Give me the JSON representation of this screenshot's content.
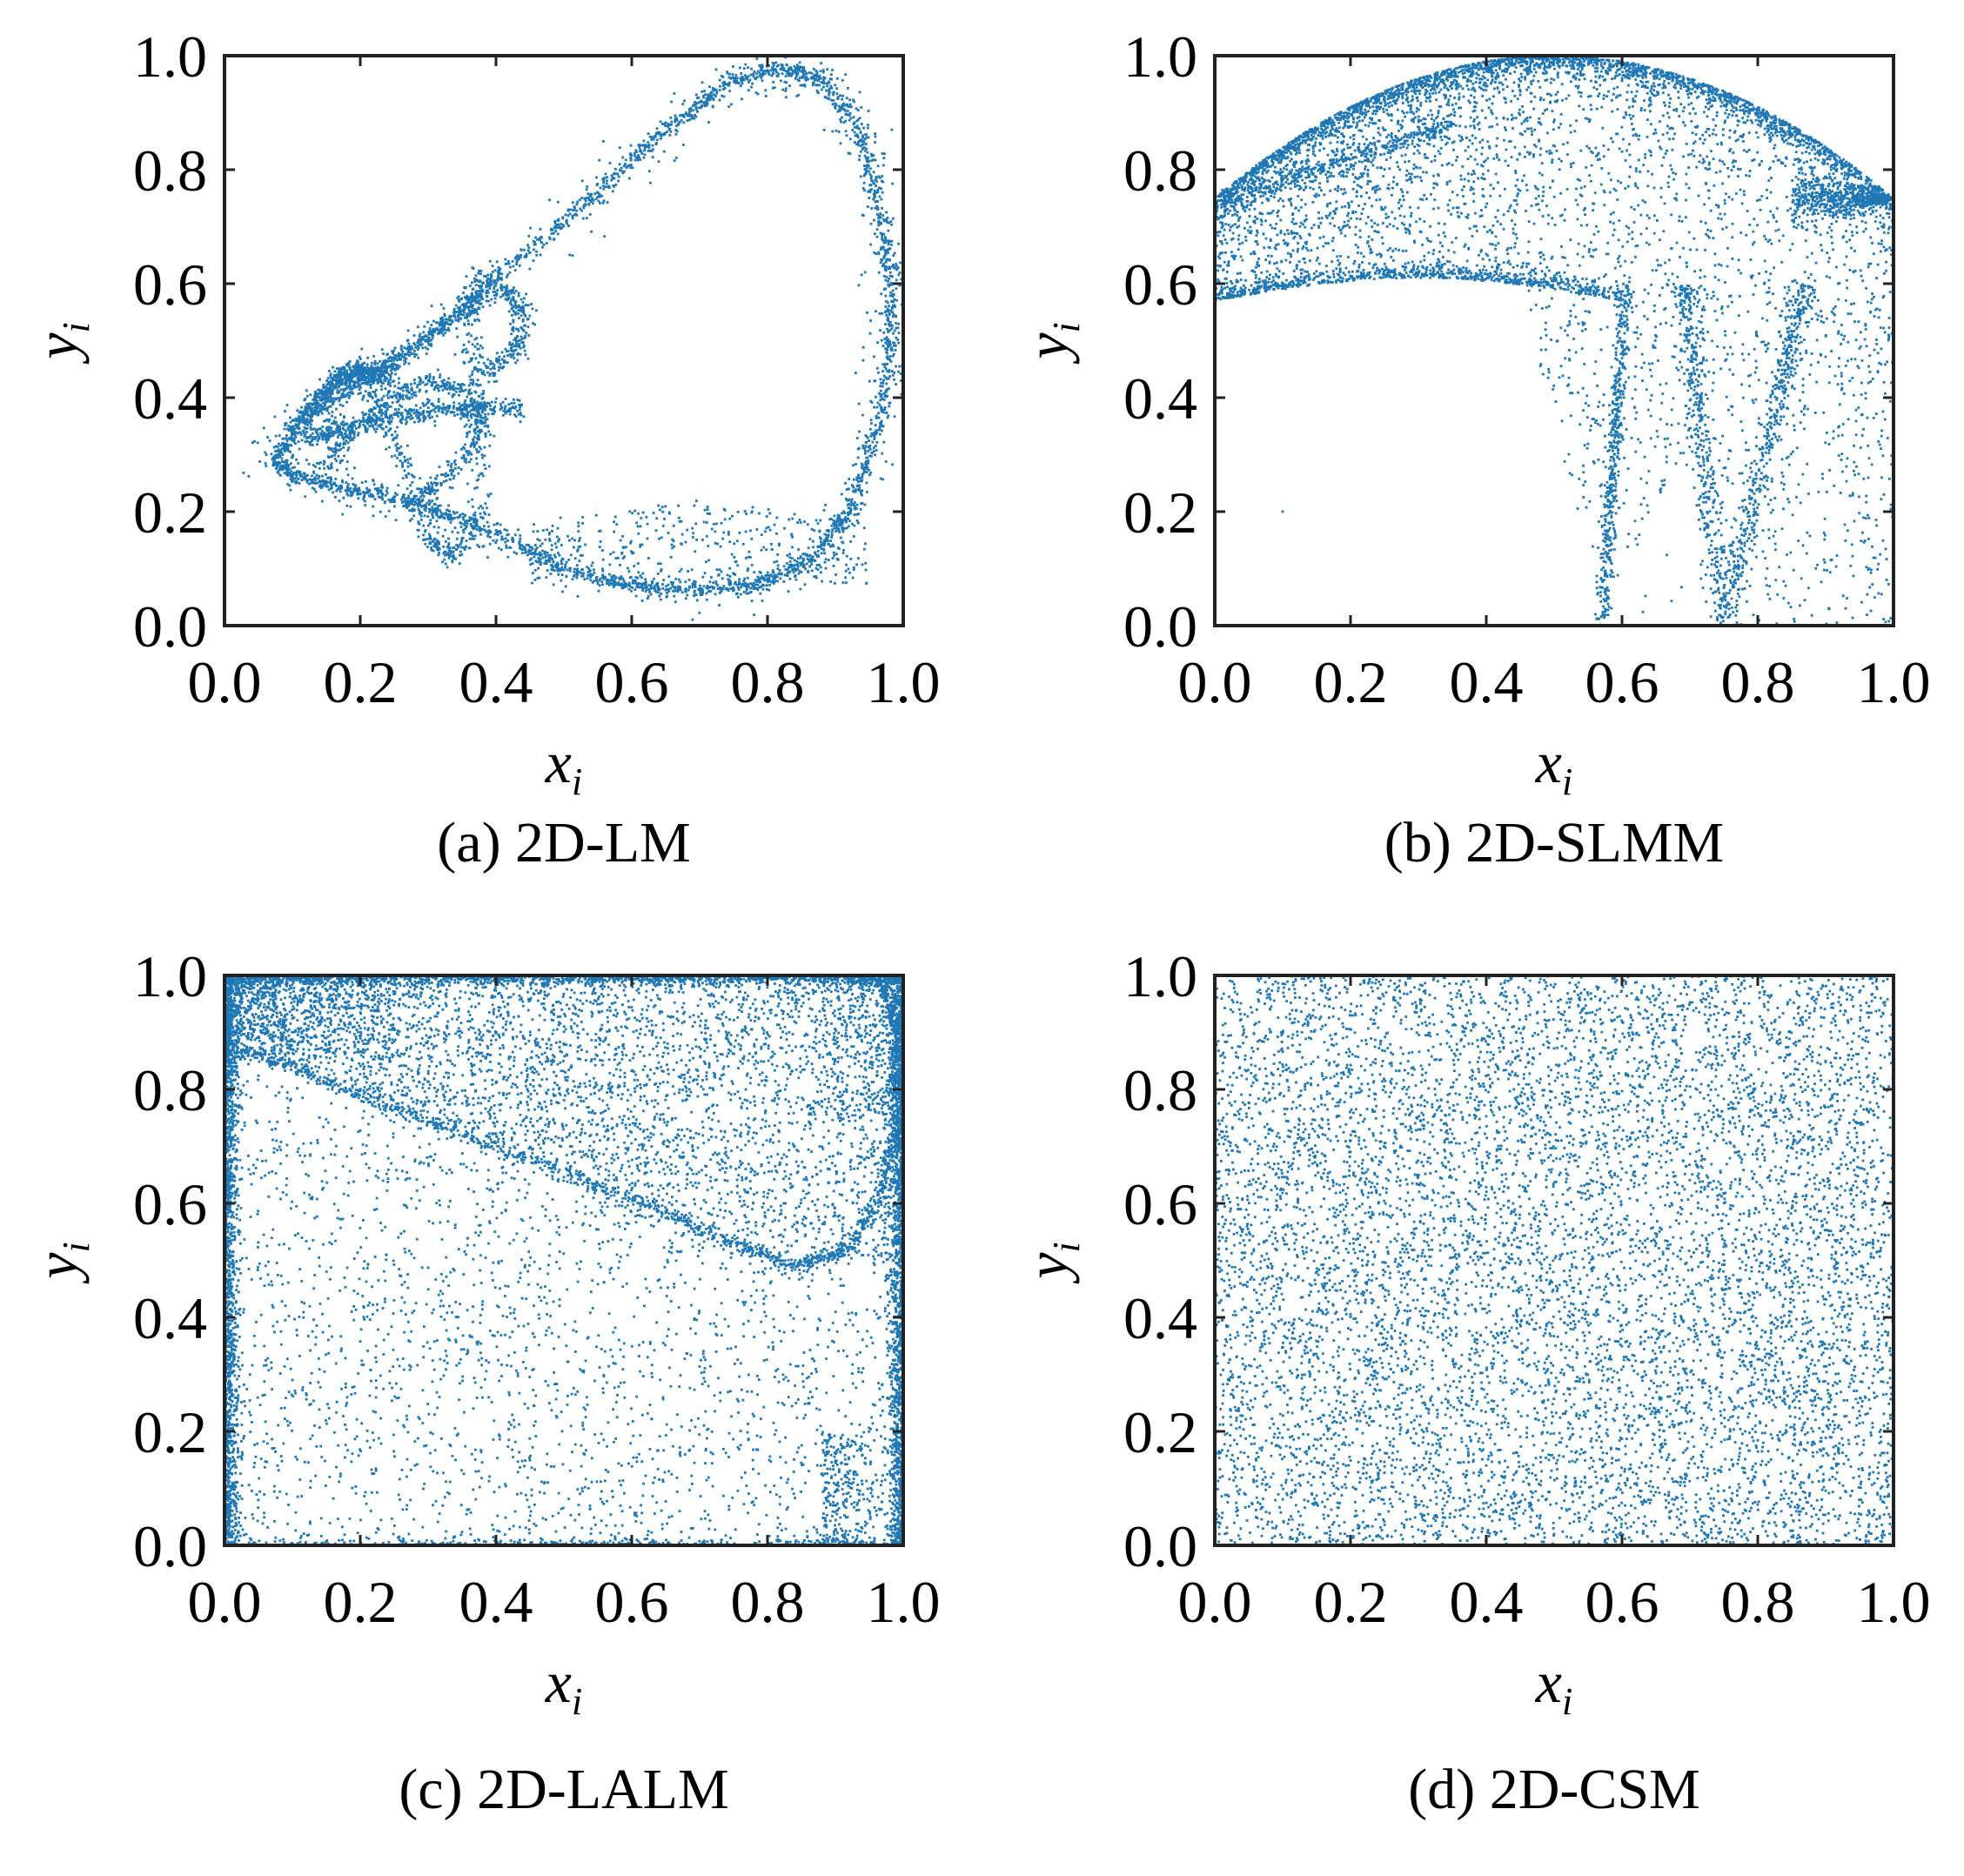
{
  "colors": {
    "points": "#1f77b4",
    "axes": "#222222"
  },
  "chart_data": [
    {
      "id": "a",
      "type": "scatter",
      "caption": "(a) 2D-LM",
      "xlabel": "x",
      "xlabel_sub": "i",
      "ylabel": "y",
      "ylabel_sub": "i",
      "xlim": [
        0,
        1
      ],
      "ylim": [
        0,
        1
      ],
      "xticks": [
        "0.0",
        "0.2",
        "0.4",
        "0.6",
        "0.8",
        "1.0"
      ],
      "yticks": [
        "0.0",
        "0.2",
        "0.4",
        "0.6",
        "0.8",
        "1.0"
      ],
      "grid": false,
      "series": [
        {
          "pattern": "loop-attractor",
          "loop_path": [
            [
              0.07,
              0.29
            ],
            [
              0.12,
              0.36
            ],
            [
              0.18,
              0.41
            ],
            [
              0.26,
              0.47
            ],
            [
              0.35,
              0.56
            ],
            [
              0.45,
              0.66
            ],
            [
              0.55,
              0.76
            ],
            [
              0.65,
              0.87
            ],
            [
              0.74,
              0.95
            ],
            [
              0.82,
              0.98
            ],
            [
              0.88,
              0.96
            ],
            [
              0.93,
              0.88
            ],
            [
              0.96,
              0.76
            ],
            [
              0.98,
              0.62
            ],
            [
              0.98,
              0.48
            ],
            [
              0.96,
              0.34
            ],
            [
              0.92,
              0.2
            ],
            [
              0.86,
              0.11
            ],
            [
              0.78,
              0.07
            ],
            [
              0.7,
              0.06
            ],
            [
              0.6,
              0.07
            ],
            [
              0.5,
              0.1
            ],
            [
              0.42,
              0.15
            ],
            [
              0.34,
              0.19
            ],
            [
              0.26,
              0.22
            ],
            [
              0.18,
              0.24
            ],
            [
              0.11,
              0.26
            ],
            [
              0.07,
              0.29
            ]
          ],
          "inner_paths": [
            [
              [
                0.2,
                0.44
              ],
              [
                0.26,
                0.3
              ],
              [
                0.3,
                0.15
              ],
              [
                0.34,
                0.12
              ],
              [
                0.38,
                0.2
              ],
              [
                0.37,
                0.38
              ],
              [
                0.36,
                0.55
              ],
              [
                0.38,
                0.62
              ]
            ],
            [
              [
                0.12,
                0.33
              ],
              [
                0.22,
                0.36
              ],
              [
                0.32,
                0.38
              ],
              [
                0.44,
                0.38
              ]
            ],
            [
              [
                0.16,
                0.41
              ],
              [
                0.24,
                0.46
              ],
              [
                0.32,
                0.52
              ],
              [
                0.4,
                0.6
              ],
              [
                0.44,
                0.56
              ],
              [
                0.43,
                0.48
              ],
              [
                0.38,
                0.44
              ]
            ],
            [
              [
                0.15,
                0.28
              ],
              [
                0.2,
                0.35
              ],
              [
                0.25,
                0.4
              ],
              [
                0.3,
                0.43
              ],
              [
                0.36,
                0.41
              ],
              [
                0.38,
                0.34
              ],
              [
                0.33,
                0.26
              ],
              [
                0.28,
                0.22
              ]
            ],
            [
              [
                0.1,
                0.34
              ],
              [
                0.14,
                0.4
              ],
              [
                0.17,
                0.44
              ],
              [
                0.2,
                0.45
              ],
              [
                0.24,
                0.43
              ]
            ]
          ]
        }
      ]
    },
    {
      "id": "b",
      "type": "scatter",
      "caption": "(b) 2D-SLMM",
      "xlabel": "x",
      "xlabel_sub": "i",
      "ylabel": "y",
      "ylabel_sub": "i",
      "xlim": [
        0,
        1
      ],
      "ylim": [
        0,
        1
      ],
      "xticks": [
        "0.0",
        "0.2",
        "0.4",
        "0.6",
        "0.8",
        "1.0"
      ],
      "yticks": [
        "0.0",
        "0.2",
        "0.4",
        "0.6",
        "0.8",
        "1.0"
      ],
      "grid": false,
      "series": [
        {
          "pattern": "arch-region",
          "upper_boundary": "y = 1 - (x - 0.5)^2 (approx. 0.75 at x=0 and x=1, 1.0 at x=0.5)",
          "lower_boundary_left": "y = 0.57 + 0.04 * sin(pi*x/0.6) for x <= 0.6",
          "spikes": [
            [
              0.57,
              0.0
            ],
            [
              0.75,
              0.0
            ]
          ],
          "dense_corner": [
            1.0,
            0.75
          ],
          "isolated_point": [
            0.1,
            0.2
          ]
        }
      ]
    },
    {
      "id": "c",
      "type": "scatter",
      "caption": "(c) 2D-LALM",
      "xlabel": "x",
      "xlabel_sub": "i",
      "ylabel": "y",
      "ylabel_sub": "i",
      "xlim": [
        0,
        1
      ],
      "ylim": [
        0,
        1
      ],
      "xticks": [
        "0.0",
        "0.2",
        "0.4",
        "0.6",
        "0.8",
        "1.0"
      ],
      "yticks": [
        "0.0",
        "0.2",
        "0.4",
        "0.6",
        "0.8",
        "1.0"
      ],
      "grid": false,
      "series": [
        {
          "pattern": "box-fill",
          "diagonal_curve": [
            [
              0.0,
              0.88
            ],
            [
              0.2,
              0.79
            ],
            [
              0.4,
              0.7
            ],
            [
              0.6,
              0.61
            ],
            [
              0.75,
              0.53
            ],
            [
              0.85,
              0.49
            ],
            [
              0.92,
              0.52
            ],
            [
              0.97,
              0.62
            ],
            [
              0.99,
              0.76
            ],
            [
              0.99,
              0.9
            ],
            [
              0.97,
              0.99
            ]
          ],
          "dense_edges": [
            "left",
            "right",
            "top"
          ]
        }
      ]
    },
    {
      "id": "d",
      "type": "scatter",
      "caption": "(d) 2D-CSM",
      "xlabel": "x",
      "xlabel_sub": "i",
      "ylabel": "y",
      "ylabel_sub": "i",
      "xlim": [
        0,
        1
      ],
      "ylim": [
        0,
        1
      ],
      "xticks": [
        "0.0",
        "0.2",
        "0.4",
        "0.6",
        "0.8",
        "1.0"
      ],
      "yticks": [
        "0.0",
        "0.2",
        "0.4",
        "0.6",
        "0.8",
        "1.0"
      ],
      "grid": false,
      "series": [
        {
          "pattern": "uniform",
          "distribution": "uniform over [0,1] x [0,1]"
        }
      ]
    }
  ]
}
